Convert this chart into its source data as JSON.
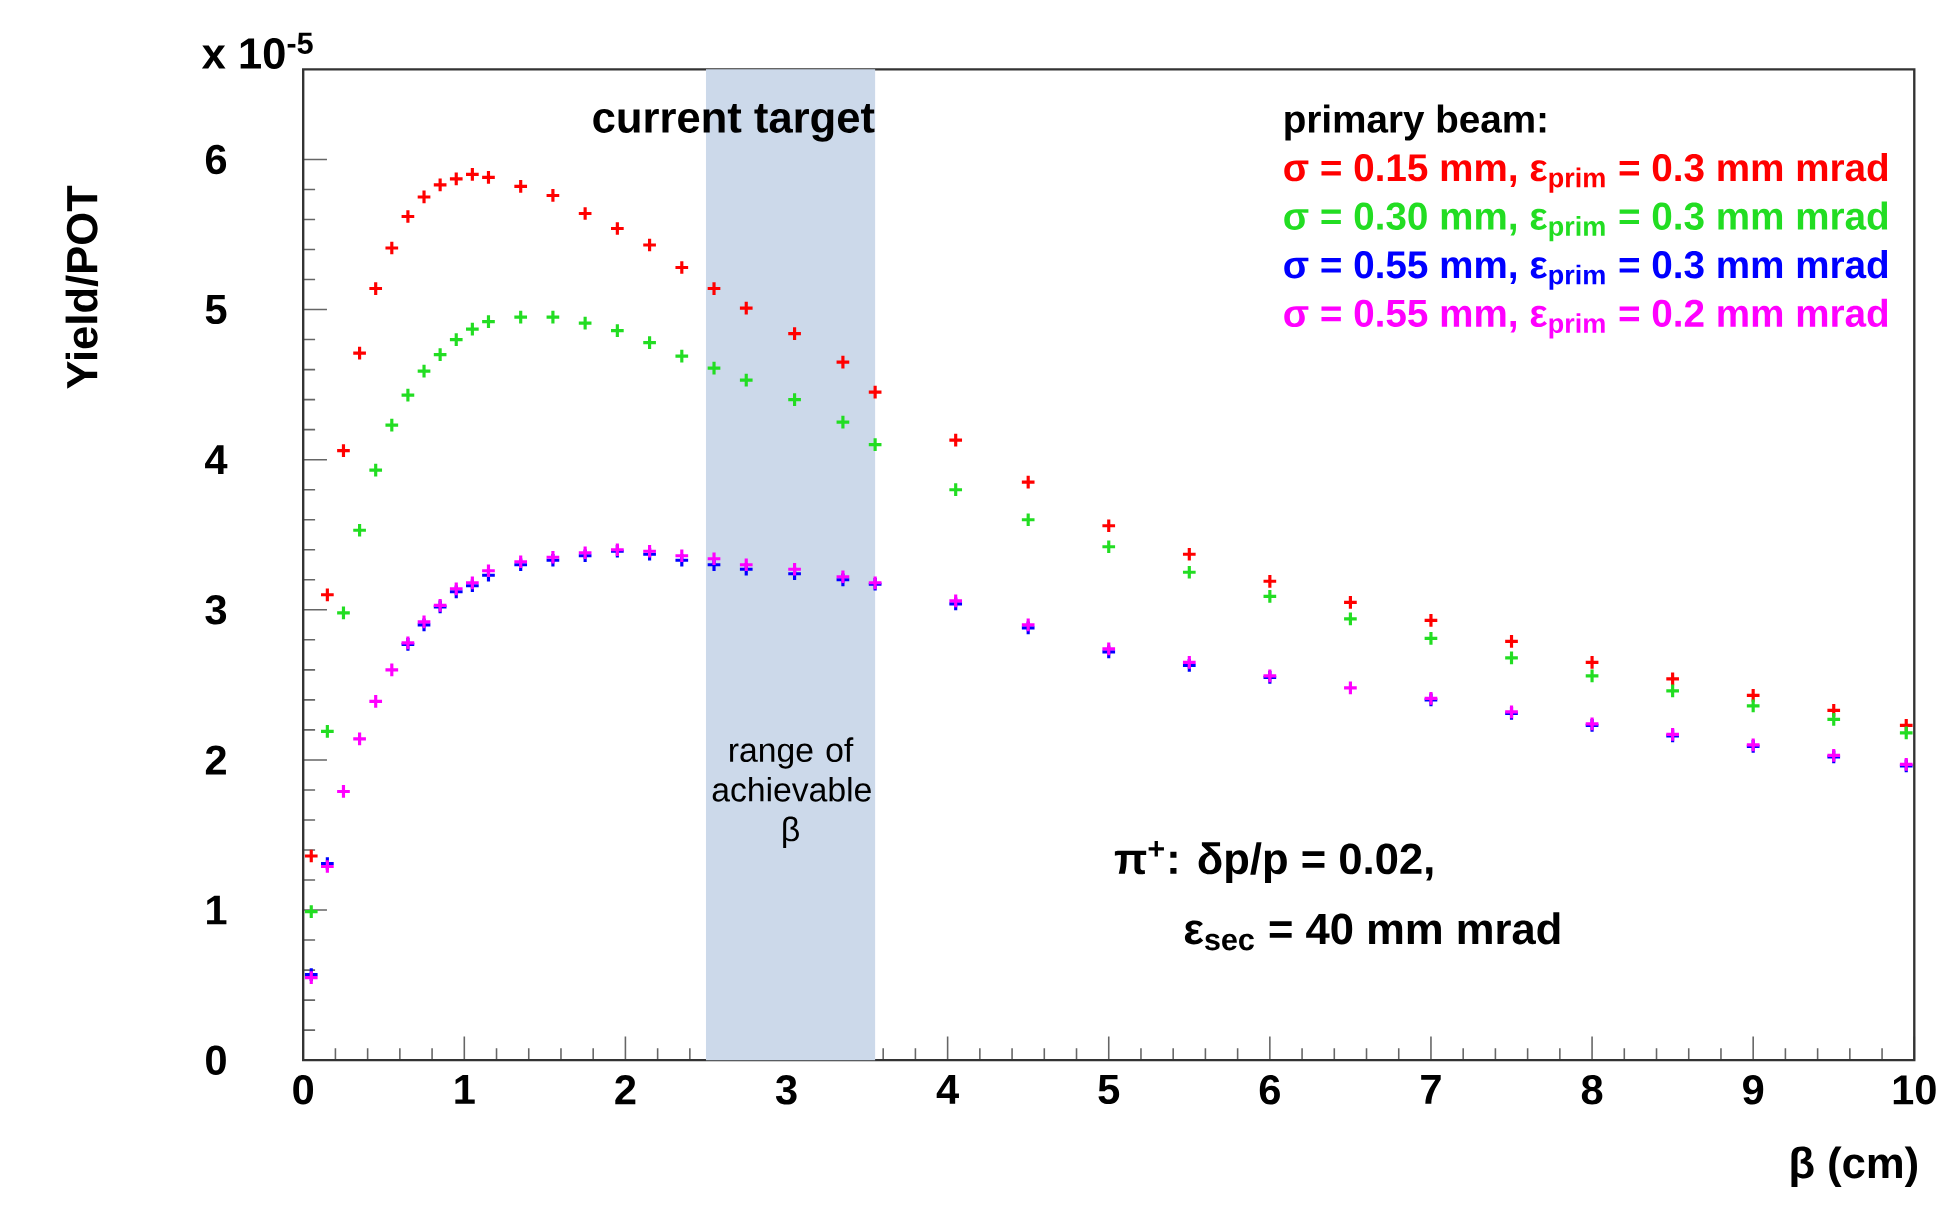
{
  "chart_data": {
    "type": "scatter",
    "ylabel": "Yield/POT",
    "xlabel": "β (cm)",
    "legend_title": "primary beam:",
    "legend": "top right",
    "marker": "cross",
    "x": [
      0.05,
      0.15,
      0.25,
      0.35,
      0.45,
      0.55,
      0.65,
      0.75,
      0.85,
      0.95,
      1.05,
      1.15,
      1.35,
      1.55,
      1.75,
      1.95,
      2.15,
      2.35,
      2.55,
      2.75,
      3.05,
      3.35,
      3.55,
      4.05,
      4.5,
      5,
      5.5,
      6,
      6.5,
      7,
      7.5,
      8,
      8.5,
      9,
      9.5,
      9.95
    ],
    "xlim": [
      0,
      10
    ],
    "ylim": [
      0,
      6.6
    ],
    "xticks": [
      0,
      1,
      2,
      3,
      4,
      5,
      6,
      7,
      8,
      9,
      10
    ],
    "yticks": [
      0,
      1,
      2,
      3,
      4,
      5,
      6
    ],
    "series": [
      {
        "name": "σ = 0.15 mm, ε$_{prim}$ = 0.3 mm mrad",
        "color": "#ff0000",
        "values": [
          1.36,
          3.1,
          4.06,
          4.71,
          5.14,
          5.41,
          5.62,
          5.75,
          5.83,
          5.87,
          5.9,
          5.88,
          5.82,
          5.76,
          5.64,
          5.54,
          5.43,
          5.28,
          5.14,
          5.01,
          4.84,
          4.65,
          4.45,
          4.13,
          3.85,
          3.56,
          3.37,
          3.19,
          3.05,
          2.93,
          2.79,
          2.65,
          2.54,
          2.43,
          2.33,
          2.23
        ]
      },
      {
        "name": "σ = 0.30 mm, ε$_{prim}$ = 0.3 mm mrad",
        "color": "#22dd22",
        "values": [
          0.99,
          2.19,
          2.98,
          3.53,
          3.93,
          4.23,
          4.43,
          4.59,
          4.7,
          4.8,
          4.87,
          4.92,
          4.95,
          4.95,
          4.91,
          4.86,
          4.78,
          4.69,
          4.61,
          4.53,
          4.4,
          4.25,
          4.1,
          3.8,
          3.6,
          3.42,
          3.25,
          3.09,
          2.94,
          2.81,
          2.68,
          2.56,
          2.46,
          2.36,
          2.27,
          2.18
        ]
      },
      {
        "name": "σ = 0.55 mm, ε$_{prim}$ = 0.3 mm mrad",
        "color": "#0000ff",
        "values": [
          0.57,
          1.31,
          null,
          null,
          null,
          null,
          2.77,
          2.9,
          3.02,
          3.12,
          3.16,
          3.23,
          3.3,
          3.33,
          3.36,
          3.39,
          3.37,
          3.33,
          3.3,
          3.27,
          3.24,
          3.2,
          3.17,
          3.04,
          2.88,
          2.72,
          2.63,
          2.55,
          null,
          2.4,
          2.31,
          2.23,
          2.16,
          2.09,
          2.02,
          1.96
        ]
      },
      {
        "name": "σ = 0.55 mm, ε$_{prim}$ = 0.2 mm mrad",
        "color": "#ff00ff",
        "values": [
          0.55,
          1.29,
          1.79,
          2.14,
          2.39,
          2.6,
          2.78,
          2.92,
          3.03,
          3.14,
          3.18,
          3.26,
          3.32,
          3.35,
          3.38,
          3.4,
          3.39,
          3.36,
          3.34,
          3.3,
          3.27,
          3.22,
          3.18,
          3.06,
          2.9,
          2.74,
          2.65,
          2.56,
          2.48,
          2.41,
          2.32,
          2.24,
          2.17,
          2.1,
          2.03,
          1.97
        ]
      }
    ],
    "bands": [
      {
        "axis": "x",
        "from": 2.5,
        "to": 3.55,
        "label": "range of achievable β",
        "color": "#ccd9ea"
      }
    ],
    "annotations": [
      "current target",
      "x 10$^{-5}$",
      "π$^{+}$: δp/p = 0.02,",
      "ε$_{sec}$ = 40 mm mrad"
    ]
  }
}
